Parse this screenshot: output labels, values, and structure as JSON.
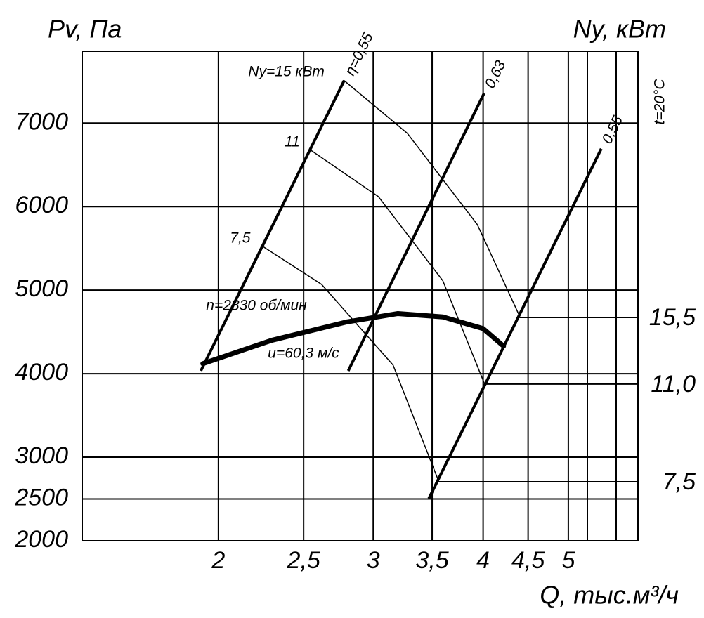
{
  "chart_data": {
    "type": "line",
    "y_label": "Pv, Па",
    "y2_label": "Ny, кВт",
    "x_label": "Q, тыс.м³/ч",
    "temperature": "t=20°C",
    "speed_label": "u=60,3 м/с",
    "xlog": true,
    "grid": true,
    "xlim": [
      1.4,
      6.0
    ],
    "ylim": [
      2000,
      7860
    ],
    "xticks": [
      2,
      {
        "value": 2.5,
        "label": "2,5"
      },
      3,
      {
        "value": 3.5,
        "label": "3,5"
      },
      4,
      {
        "value": 4.5,
        "label": "4,5"
      },
      5
    ],
    "yticks": [
      2000,
      2500,
      3000,
      4000,
      5000,
      6000,
      7000
    ],
    "series": [
      {
        "name": "n=2830 об/мин",
        "color": "#000000",
        "x": [
          1.92,
          2.3,
          2.8,
          3.2,
          3.6,
          4.0,
          4.22
        ],
        "values": [
          4120,
          4400,
          4620,
          4720,
          4680,
          4540,
          4330
        ]
      }
    ],
    "efficiency_lines": [
      {
        "label": "η=0,55",
        "x": [
          1.91,
          2.78
        ],
        "values": [
          4035,
          7509
        ]
      },
      {
        "label": "0,63",
        "x": [
          2.81,
          4.01
        ],
        "values": [
          4035,
          7357
        ]
      },
      {
        "label": "0,55",
        "x": [
          3.47,
          5.45
        ],
        "values": [
          2505,
          6693
        ]
      }
    ],
    "power_curves": [
      {
        "label": "Ny=15 кВт",
        "x": [
          2.78,
          3.28,
          3.94,
          4.4
        ],
        "values": [
          7509,
          6878,
          5785,
          4691
        ]
      },
      {
        "label": "11",
        "x": [
          2.54,
          3.04,
          3.6,
          4.01
        ],
        "values": [
          6685,
          6121,
          5112,
          3892
        ]
      },
      {
        "label": "7,5",
        "x": [
          2.24,
          2.62,
          3.16,
          3.56
        ],
        "values": [
          5532,
          5070,
          4103,
          2715
        ]
      }
    ],
    "power_levels": [
      {
        "label": "15,5",
        "q": 4.4,
        "pv": 4674
      },
      {
        "label": "11,0",
        "q": 4.01,
        "pv": 3876
      },
      {
        "label": "7,5",
        "q": 3.56,
        "pv": 2706
      }
    ]
  }
}
